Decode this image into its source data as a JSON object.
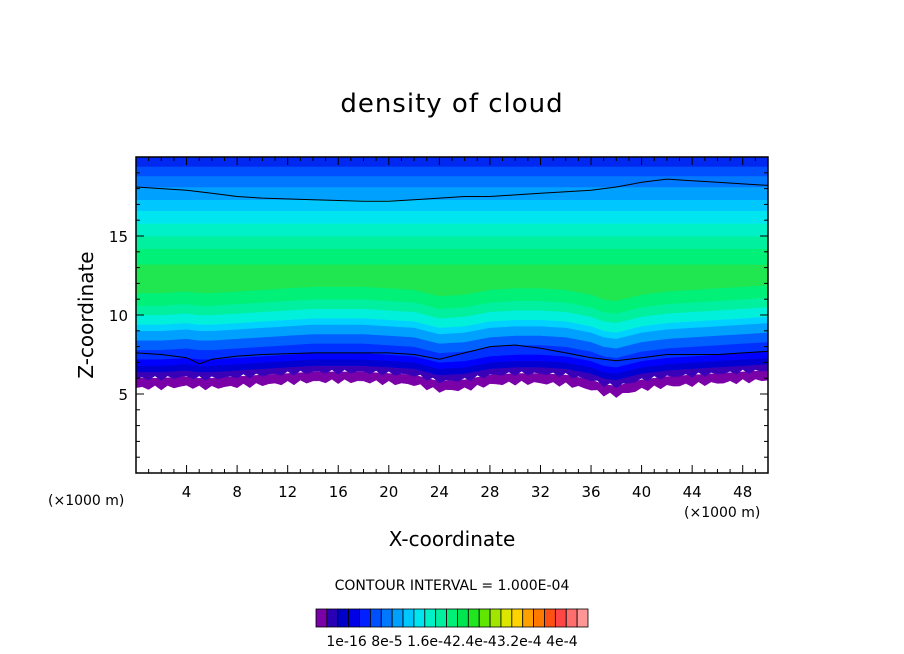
{
  "chart_data": {
    "type": "heatmap",
    "title": "density of cloud",
    "xlabel": "X-coordinate",
    "ylabel": "Z-coordinate",
    "x_unit": "(×1000 m)",
    "y_unit": "(×1000 m)",
    "xlim": [
      0,
      50
    ],
    "ylim": [
      0,
      20
    ],
    "x_ticks": [
      4,
      8,
      12,
      16,
      20,
      24,
      28,
      32,
      36,
      40,
      44,
      48
    ],
    "y_ticks": [
      5,
      10,
      15
    ],
    "contour_interval_text": "CONTOUR INTERVAL = 1.000E-04",
    "colorbar": {
      "labels": [
        "1e-16",
        "8e-5",
        "1.6e-4",
        "2.4e-4",
        "3.2e-4",
        "4e-4"
      ],
      "label_text": "1e-16 8e-5 1.6e-42.4e-43.2e-4 4e-4",
      "colors": [
        "#7a00a8",
        "#2a00b4",
        "#0000c8",
        "#0000e6",
        "#0020ff",
        "#0050ff",
        "#0078ff",
        "#00a0ff",
        "#00c8ff",
        "#00e6f0",
        "#00f0c8",
        "#00f0a0",
        "#00f078",
        "#00e650",
        "#20e620",
        "#60e600",
        "#a0e600",
        "#dce600",
        "#ffd200",
        "#ffa000",
        "#ff7800",
        "#ff5014",
        "#ff4646",
        "#ff6e6e",
        "#ff9696"
      ]
    },
    "profile_x": [
      0,
      2,
      4,
      5,
      6,
      8,
      10,
      14,
      18,
      20,
      22,
      24,
      26,
      28,
      30,
      32,
      34,
      36,
      37,
      38,
      40,
      42,
      44,
      46,
      48,
      50
    ],
    "cloud_base_z": [
      5.4,
      5.4,
      5.5,
      5.4,
      5.4,
      5.5,
      5.6,
      5.8,
      5.8,
      5.7,
      5.6,
      5.2,
      5.3,
      5.6,
      5.7,
      5.7,
      5.6,
      5.3,
      5.0,
      4.9,
      5.3,
      5.5,
      5.6,
      5.7,
      5.8,
      5.9
    ],
    "cloud_top_contour_z": [
      18.1,
      18.0,
      17.9,
      17.8,
      17.7,
      17.5,
      17.4,
      17.3,
      17.2,
      17.2,
      17.3,
      17.4,
      17.5,
      17.5,
      17.6,
      17.7,
      17.8,
      17.9,
      18.0,
      18.1,
      18.4,
      18.6,
      18.5,
      18.4,
      18.3,
      18.2
    ],
    "lower_contour_z": [
      7.6,
      7.5,
      7.3,
      6.9,
      7.2,
      7.4,
      7.5,
      7.6,
      7.6,
      7.6,
      7.5,
      7.2,
      7.6,
      8.0,
      8.1,
      7.9,
      7.6,
      7.3,
      7.2,
      7.1,
      7.3,
      7.5,
      7.5,
      7.5,
      7.6,
      7.7
    ]
  }
}
